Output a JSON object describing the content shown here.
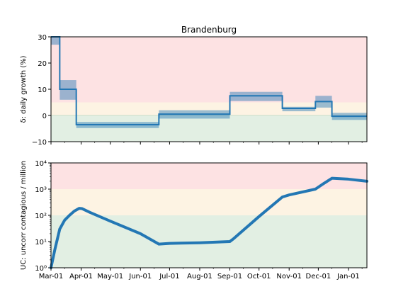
{
  "chart_data": [
    {
      "type": "line",
      "title": "Brandenburg",
      "ylabel": "δ: daily growth (%)",
      "ylim": [
        -10,
        30
      ],
      "yticks": [
        -10,
        0,
        10,
        20,
        30
      ],
      "ytick_labels": [
        "−10",
        "0",
        "10",
        "20",
        "30"
      ],
      "grid": false,
      "bands": [
        {
          "from": -10,
          "to": 0,
          "color": "#e2efe3"
        },
        {
          "from": 0,
          "to": 5,
          "color": "#fdf3e3"
        },
        {
          "from": 5,
          "to": 30,
          "color": "#fde2e3"
        }
      ],
      "zero_line_color": "#c6dcc8",
      "series": [
        {
          "kind": "step",
          "color": "#2377b4",
          "steps": [
            {
              "x0": "2020-03-01",
              "x1": "2020-03-10",
              "y": 30,
              "lo": 27,
              "hi": 30
            },
            {
              "x0": "2020-03-10",
              "x1": "2020-03-27",
              "y": 10,
              "lo": 6,
              "hi": 13.5
            },
            {
              "x0": "2020-03-27",
              "x1": "2020-06-20",
              "y": -3.5,
              "lo": -4.8,
              "hi": -2.5
            },
            {
              "x0": "2020-06-20",
              "x1": "2020-09-01",
              "y": 0.5,
              "lo": -1.2,
              "hi": 2
            },
            {
              "x0": "2020-09-01",
              "x1": "2020-10-25",
              "y": 7.5,
              "lo": 5.5,
              "hi": 9
            },
            {
              "x0": "2020-10-25",
              "x1": "2020-11-28",
              "y": 2.7,
              "lo": 1.6,
              "hi": 3.3
            },
            {
              "x0": "2020-11-28",
              "x1": "2020-12-15",
              "y": 5.3,
              "lo": 3,
              "hi": 7.5
            },
            {
              "x0": "2020-12-15",
              "x1": "2021-01-20",
              "y": -0.3,
              "lo": -1.7,
              "hi": 1
            }
          ]
        }
      ]
    },
    {
      "type": "line",
      "ylabel": "UC: uncorr contagious / million",
      "yscale": "log",
      "ylim": [
        1,
        10000
      ],
      "yticks": [
        1,
        10,
        100,
        1000,
        10000
      ],
      "ytick_labels": [
        "10⁰",
        "10¹",
        "10²",
        "10³",
        "10⁴"
      ],
      "grid": false,
      "bands": [
        {
          "from": 1,
          "to": 100,
          "color": "#e2efe3"
        },
        {
          "from": 100,
          "to": 1000,
          "color": "#fdf3e3"
        },
        {
          "from": 1000,
          "to": 10000,
          "color": "#fde2e3"
        }
      ],
      "x": [
        "2020-03-01",
        "2020-03-05",
        "2020-03-10",
        "2020-03-15",
        "2020-03-20",
        "2020-03-25",
        "2020-03-30",
        "2020-04-02",
        "2020-04-10",
        "2020-05-01",
        "2020-06-01",
        "2020-06-20",
        "2020-07-01",
        "2020-08-01",
        "2020-09-01",
        "2020-09-05",
        "2020-10-01",
        "2020-10-25",
        "2020-11-01",
        "2020-11-28",
        "2020-12-05",
        "2020-12-15",
        "2021-01-01",
        "2021-01-20"
      ],
      "series": [
        {
          "color": "#2377b4",
          "values": [
            1,
            5,
            30,
            65,
            100,
            145,
            185,
            180,
            130,
            60,
            20,
            8,
            8.5,
            9,
            10,
            13,
            90,
            500,
            600,
            1000,
            1500,
            2600,
            2400,
            2000
          ]
        }
      ]
    }
  ],
  "xaxis": {
    "ticks": [
      "2020-03-01",
      "2020-04-01",
      "2020-05-01",
      "2020-06-01",
      "2020-07-01",
      "2020-08-01",
      "2020-09-01",
      "2020-10-01",
      "2020-11-01",
      "2020-12-01",
      "2021-01-01"
    ],
    "tick_labels": [
      "Mar-01",
      "Apr-01",
      "May-01",
      "Jun-01",
      "Jul-01",
      "Aug-01",
      "Sep-01",
      "Oct-01",
      "Nov-01",
      "Dec-01",
      "Jan-01"
    ],
    "minor_ticks": [
      "2020-03-15",
      "2020-04-15",
      "2020-05-15",
      "2020-06-15",
      "2020-07-15",
      "2020-08-15",
      "2020-09-15",
      "2020-10-15",
      "2020-11-15",
      "2020-12-15",
      "2021-01-15"
    ],
    "xlim": [
      "2020-03-01",
      "2021-01-20"
    ]
  }
}
